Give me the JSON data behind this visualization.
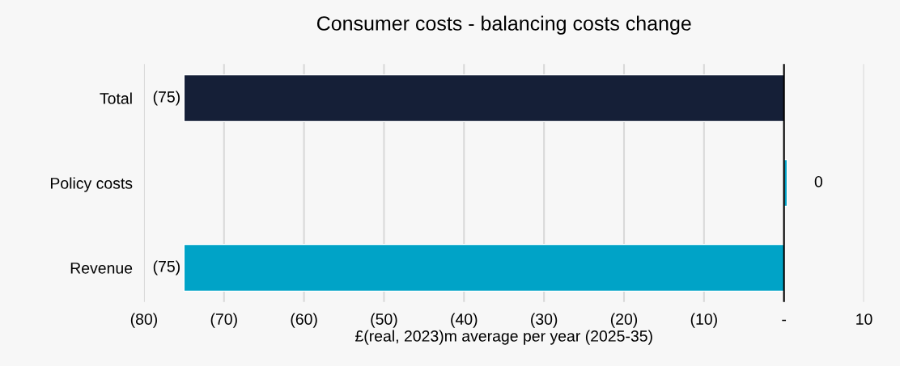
{
  "chart_data": {
    "type": "bar",
    "orientation": "horizontal",
    "title": "Consumer costs - balancing costs change",
    "xlabel": "£(real, 2023)m average per year (2025-35)",
    "categories": [
      "Total",
      "Policy costs",
      "Revenue"
    ],
    "values": [
      -75,
      0.4,
      -75
    ],
    "colors": [
      "#151f37",
      "#00a3c7",
      "#00a3c7"
    ],
    "value_labels": [
      "(75)",
      "0",
      "(75)"
    ],
    "xlim": [
      -80,
      10
    ],
    "xticks": [
      {
        "value": -80,
        "label": "(80)"
      },
      {
        "value": -70,
        "label": "(70)"
      },
      {
        "value": -60,
        "label": "(60)"
      },
      {
        "value": -50,
        "label": "(50)"
      },
      {
        "value": -40,
        "label": "(40)"
      },
      {
        "value": -30,
        "label": "(30)"
      },
      {
        "value": -20,
        "label": "(20)"
      },
      {
        "value": -10,
        "label": "(10)"
      },
      {
        "value": 0,
        "label": "-"
      },
      10
    ],
    "ref_lines": [
      {
        "axis": "x",
        "value": 0,
        "color": "#000000"
      }
    ],
    "grid": "x"
  }
}
